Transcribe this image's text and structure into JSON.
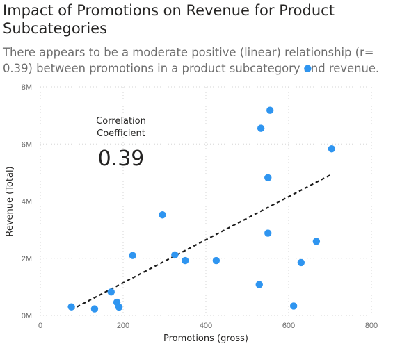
{
  "header": {
    "title": "Impact of Promotions on Revenue for Product Subcategories",
    "subtitle": "There appears to be a moderate positive (linear) relationship (r= 0.39) between promotions in a product subcategory and revenue."
  },
  "card": {
    "label_line1": "Correlation",
    "label_line2": "Coefficient",
    "value": "0.39"
  },
  "colors": {
    "point": "#2f95f0",
    "trend": "#1b1b1b",
    "grid": "#d6d6d6"
  },
  "chart_data": {
    "type": "scatter",
    "xlabel": "Promotions (gross)",
    "ylabel": "Revenue (Total)",
    "xlim": [
      0,
      800
    ],
    "ylim": [
      0,
      8000000
    ],
    "x_ticks": [
      0,
      200,
      400,
      600,
      800
    ],
    "x_tick_labels": [
      "0",
      "200",
      "400",
      "600",
      "800"
    ],
    "y_ticks": [
      0,
      2000000,
      4000000,
      6000000,
      8000000
    ],
    "y_tick_labels": [
      "0M",
      "2M",
      "4M",
      "6M",
      "8M"
    ],
    "grid": true,
    "points": [
      {
        "x": 75,
        "y": 300000
      },
      {
        "x": 131,
        "y": 230000
      },
      {
        "x": 171,
        "y": 820000
      },
      {
        "x": 185,
        "y": 460000
      },
      {
        "x": 190,
        "y": 290000
      },
      {
        "x": 223,
        "y": 2100000
      },
      {
        "x": 295,
        "y": 3520000
      },
      {
        "x": 325,
        "y": 2120000
      },
      {
        "x": 350,
        "y": 1920000
      },
      {
        "x": 425,
        "y": 1920000
      },
      {
        "x": 529,
        "y": 1080000
      },
      {
        "x": 533,
        "y": 6550000
      },
      {
        "x": 550,
        "y": 2880000
      },
      {
        "x": 550,
        "y": 4820000
      },
      {
        "x": 555,
        "y": 7180000
      },
      {
        "x": 612,
        "y": 330000
      },
      {
        "x": 630,
        "y": 1850000
      },
      {
        "x": 646,
        "y": 8640000
      },
      {
        "x": 667,
        "y": 2590000
      },
      {
        "x": 704,
        "y": 5830000
      }
    ],
    "trendline": {
      "x": [
        75,
        704
      ],
      "y": [
        200000,
        4940000
      ]
    }
  }
}
